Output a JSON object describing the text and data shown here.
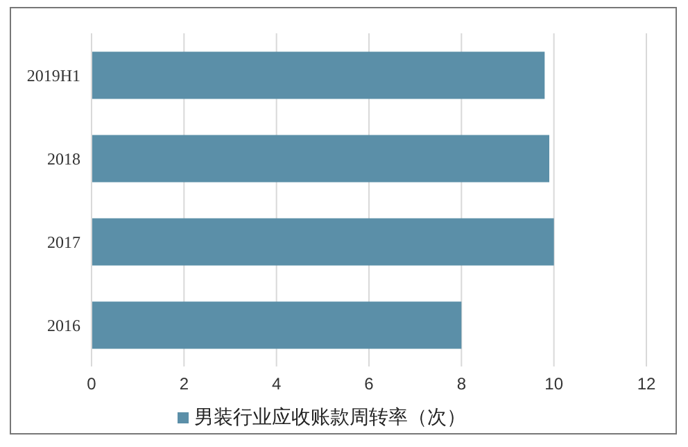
{
  "chart_data": {
    "type": "bar",
    "orientation": "horizontal",
    "categories": [
      "2019H1",
      "2018",
      "2017",
      "2016"
    ],
    "series": [
      {
        "name": "男装行业应收账款周转率（次）",
        "color": "#5b8fa8",
        "values": [
          9.8,
          9.9,
          10.0,
          8.0
        ]
      }
    ],
    "xlim": [
      0,
      12
    ],
    "xticks": [
      0,
      2,
      4,
      6,
      8,
      10,
      12
    ],
    "grid": "x",
    "legend": "bottom"
  }
}
